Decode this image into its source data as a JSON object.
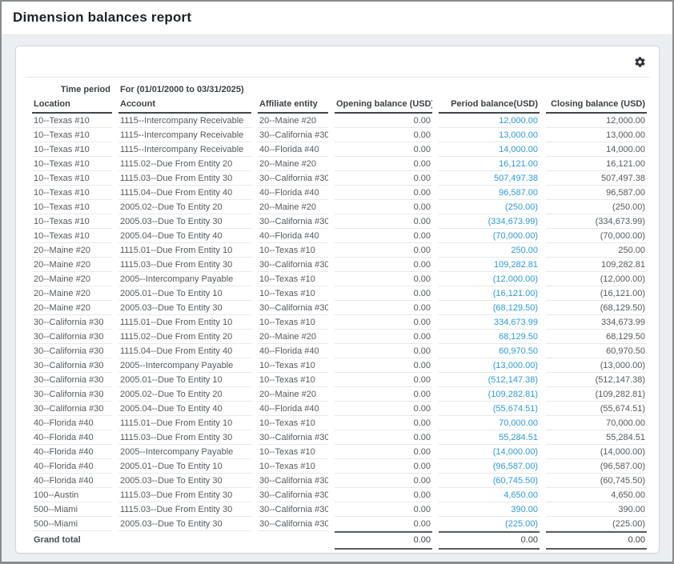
{
  "page": {
    "title": "Dimension balances report"
  },
  "toolbar": {
    "gear_icon": "settings"
  },
  "report": {
    "time_period_label": "Time period",
    "time_period_value": "For (01/01/2000 to 03/31/2025)",
    "columns": [
      "Location",
      "Account",
      "Affiliate entity",
      "Opening balance (USD)",
      "Period balance(USD)",
      "Closing balance (USD)"
    ],
    "rows": [
      {
        "location": "10--Texas #10",
        "account": "1115--Intercompany Receivable",
        "affiliate": "20--Maine #20",
        "opening": "0.00",
        "period": "12,000.00",
        "closing": "12,000.00"
      },
      {
        "location": "10--Texas #10",
        "account": "1115--Intercompany Receivable",
        "affiliate": "30--California #30",
        "opening": "0.00",
        "period": "13,000.00",
        "closing": "13,000.00"
      },
      {
        "location": "10--Texas #10",
        "account": "1115--Intercompany Receivable",
        "affiliate": "40--Florida #40",
        "opening": "0.00",
        "period": "14,000.00",
        "closing": "14,000.00"
      },
      {
        "location": "10--Texas #10",
        "account": "1115.02--Due From Entity 20",
        "affiliate": "20--Maine #20",
        "opening": "0.00",
        "period": "16,121.00",
        "closing": "16,121.00"
      },
      {
        "location": "10--Texas #10",
        "account": "1115.03--Due From Entity 30",
        "affiliate": "30--California #30",
        "opening": "0.00",
        "period": "507,497.38",
        "closing": "507,497.38"
      },
      {
        "location": "10--Texas #10",
        "account": "1115.04--Due From Entity 40",
        "affiliate": "40--Florida #40",
        "opening": "0.00",
        "period": "96,587.00",
        "closing": "96,587.00"
      },
      {
        "location": "10--Texas #10",
        "account": "2005.02--Due To Entity 20",
        "affiliate": "20--Maine #20",
        "opening": "0.00",
        "period": "(250.00)",
        "closing": "(250.00)"
      },
      {
        "location": "10--Texas #10",
        "account": "2005.03--Due To Entity 30",
        "affiliate": "30--California #30",
        "opening": "0.00",
        "period": "(334,673.99)",
        "closing": "(334,673.99)"
      },
      {
        "location": "10--Texas #10",
        "account": "2005.04--Due To Entity 40",
        "affiliate": "40--Florida #40",
        "opening": "0.00",
        "period": "(70,000.00)",
        "closing": "(70,000.00)"
      },
      {
        "location": "20--Maine #20",
        "account": "1115.01--Due From Entity 10",
        "affiliate": "10--Texas #10",
        "opening": "0.00",
        "period": "250.00",
        "closing": "250.00"
      },
      {
        "location": "20--Maine #20",
        "account": "1115.03--Due From Entity 30",
        "affiliate": "30--California #30",
        "opening": "0.00",
        "period": "109,282.81",
        "closing": "109,282.81"
      },
      {
        "location": "20--Maine #20",
        "account": "2005--Intercompany Payable",
        "affiliate": "10--Texas #10",
        "opening": "0.00",
        "period": "(12,000.00)",
        "closing": "(12,000.00)"
      },
      {
        "location": "20--Maine #20",
        "account": "2005.01--Due To Entity 10",
        "affiliate": "10--Texas #10",
        "opening": "0.00",
        "period": "(16,121.00)",
        "closing": "(16,121.00)"
      },
      {
        "location": "20--Maine #20",
        "account": "2005.03--Due To Entity 30",
        "affiliate": "30--California #30",
        "opening": "0.00",
        "period": "(68,129.50)",
        "closing": "(68,129.50)"
      },
      {
        "location": "30--California #30",
        "account": "1115.01--Due From Entity 10",
        "affiliate": "10--Texas #10",
        "opening": "0.00",
        "period": "334,673.99",
        "closing": "334,673.99"
      },
      {
        "location": "30--California #30",
        "account": "1115.02--Due From Entity 20",
        "affiliate": "20--Maine #20",
        "opening": "0.00",
        "period": "68,129.50",
        "closing": "68,129.50"
      },
      {
        "location": "30--California #30",
        "account": "1115.04--Due From Entity 40",
        "affiliate": "40--Florida #40",
        "opening": "0.00",
        "period": "60,970.50",
        "closing": "60,970.50"
      },
      {
        "location": "30--California #30",
        "account": "2005--Intercompany Payable",
        "affiliate": "10--Texas #10",
        "opening": "0.00",
        "period": "(13,000.00)",
        "closing": "(13,000.00)"
      },
      {
        "location": "30--California #30",
        "account": "2005.01--Due To Entity 10",
        "affiliate": "10--Texas #10",
        "opening": "0.00",
        "period": "(512,147.38)",
        "closing": "(512,147.38)"
      },
      {
        "location": "30--California #30",
        "account": "2005.02--Due To Entity 20",
        "affiliate": "20--Maine #20",
        "opening": "0.00",
        "period": "(109,282.81)",
        "closing": "(109,282.81)"
      },
      {
        "location": "30--California #30",
        "account": "2005.04--Due To Entity 40",
        "affiliate": "40--Florida #40",
        "opening": "0.00",
        "period": "(55,674.51)",
        "closing": "(55,674.51)"
      },
      {
        "location": "40--Florida #40",
        "account": "1115.01--Due From Entity 10",
        "affiliate": "10--Texas #10",
        "opening": "0.00",
        "period": "70,000.00",
        "closing": "70,000.00"
      },
      {
        "location": "40--Florida #40",
        "account": "1115.03--Due From Entity 30",
        "affiliate": "30--California #30",
        "opening": "0.00",
        "period": "55,284.51",
        "closing": "55,284.51"
      },
      {
        "location": "40--Florida #40",
        "account": "2005--Intercompany Payable",
        "affiliate": "10--Texas #10",
        "opening": "0.00",
        "period": "(14,000.00)",
        "closing": "(14,000.00)"
      },
      {
        "location": "40--Florida #40",
        "account": "2005.01--Due To Entity 10",
        "affiliate": "10--Texas #10",
        "opening": "0.00",
        "period": "(96,587.00)",
        "closing": "(96,587.00)"
      },
      {
        "location": "40--Florida #40",
        "account": "2005.03--Due To Entity 30",
        "affiliate": "30--California #30",
        "opening": "0.00",
        "period": "(60,745.50)",
        "closing": "(60,745.50)"
      },
      {
        "location": "100--Austin",
        "account": "1115.03--Due From Entity 30",
        "affiliate": "30--California #30",
        "opening": "0.00",
        "period": "4,650.00",
        "closing": "4,650.00"
      },
      {
        "location": "500--Miami",
        "account": "1115.03--Due From Entity 30",
        "affiliate": "30--California #30",
        "opening": "0.00",
        "period": "390.00",
        "closing": "390.00"
      },
      {
        "location": "500--Miami",
        "account": "2005.03--Due To Entity 30",
        "affiliate": "30--California #30",
        "opening": "0.00",
        "period": "(225.00)",
        "closing": "(225.00)"
      }
    ],
    "grand_total": {
      "label": "Grand total",
      "opening": "0.00",
      "period": "0.00",
      "closing": "0.00"
    }
  },
  "colors": {
    "link_blue": "#2f9bd8",
    "header_rule": "#43474b",
    "total_rule": "#595d61",
    "page_background": "#eceff2"
  }
}
